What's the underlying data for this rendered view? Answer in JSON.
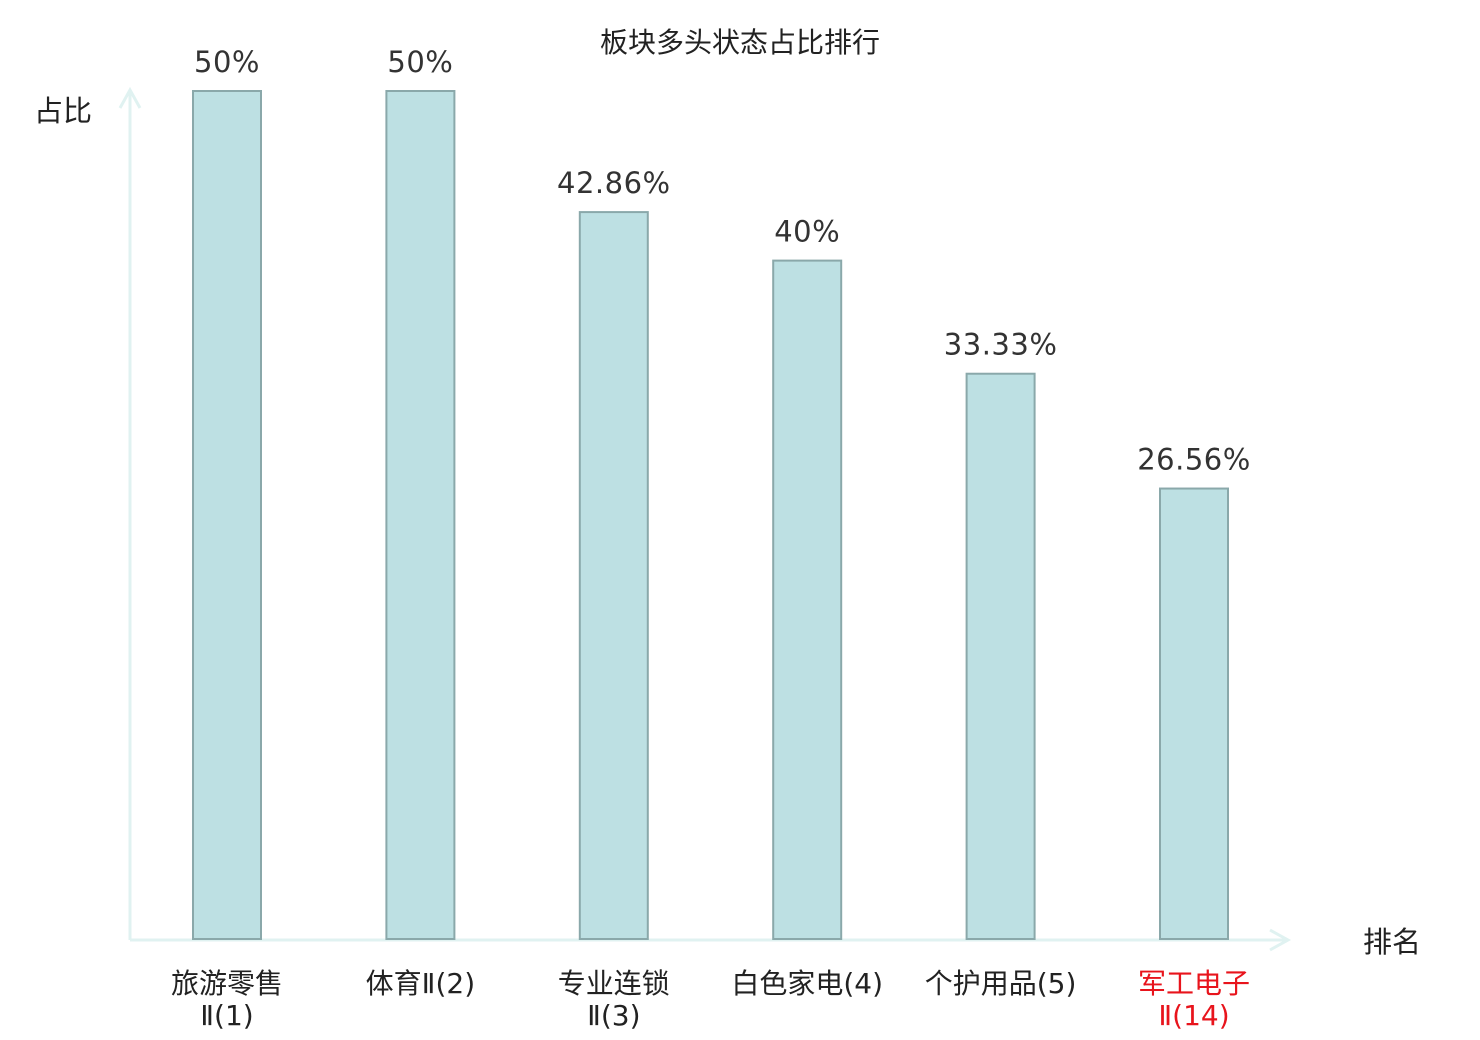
{
  "chart_data": {
    "type": "bar",
    "title": "板块多头状态占比排行",
    "ylabel": "占比",
    "xlabel": "排名",
    "ylim": [
      0,
      50
    ],
    "grid": false,
    "legend": "none",
    "bar_color": "#bde0e3",
    "axis_color": "#e0f2f1",
    "highlight_color": "#e8141c",
    "text_color": "#222222",
    "categories": [
      {
        "lines": [
          "旅游零售",
          "Ⅱ(1)"
        ],
        "highlight": false
      },
      {
        "lines": [
          "体育Ⅱ(2)"
        ],
        "highlight": false
      },
      {
        "lines": [
          "专业连锁",
          "Ⅱ(3)"
        ],
        "highlight": false
      },
      {
        "lines": [
          "白色家电(4)"
        ],
        "highlight": false
      },
      {
        "lines": [
          "个护用品(5)"
        ],
        "highlight": false
      },
      {
        "lines": [
          "军工电子",
          "Ⅱ(14)"
        ],
        "highlight": true
      }
    ],
    "values": [
      50,
      50,
      42.86,
      40,
      33.33,
      26.56
    ],
    "value_labels": [
      "50%",
      "50%",
      "42.86%",
      "40%",
      "33.33%",
      "26.56%"
    ]
  }
}
